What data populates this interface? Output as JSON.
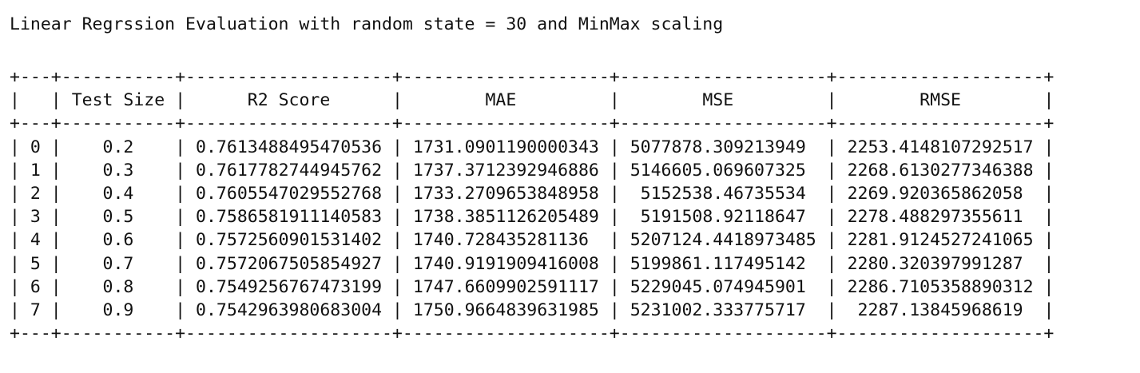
{
  "title": "Linear Regrssion Evaluation with random state = 30 and MinMax scaling",
  "table": {
    "columns": [
      "",
      "Test Size",
      "R2 Score",
      "MAE",
      "MSE",
      "RMSE"
    ],
    "rows": [
      [
        "0",
        "0.2",
        "0.7613488495470536",
        "1731.0901190000343",
        "5077878.309213949",
        "2253.4148107292517"
      ],
      [
        "1",
        "0.3",
        "0.7617782744945762",
        "1737.3712392946886",
        "5146605.069607325",
        "2268.6130277346388"
      ],
      [
        "2",
        "0.4",
        "0.7605547029552768",
        "1733.2709653848958",
        "5152538.46735534",
        "2269.920365862058"
      ],
      [
        "3",
        "0.5",
        "0.7586581911140583",
        "1738.3851126205489",
        "5191508.92118647",
        "2278.488297355611"
      ],
      [
        "4",
        "0.6",
        "0.7572560901531402",
        "1740.728435281136",
        "5207124.4418973485",
        "2281.9124527241065"
      ],
      [
        "5",
        "0.7",
        "0.7572067505854927",
        "1740.9191909416008",
        "5199861.117495142",
        "2280.320397991287"
      ],
      [
        "6",
        "0.8",
        "0.7549256767473199",
        "1747.6609902591117",
        "5229045.074945901",
        "2286.7105358890312"
      ],
      [
        "7",
        "0.9",
        "0.7542963980683004",
        "1750.9664839631985",
        "5231002.333775717",
        "2287.13845968619"
      ]
    ]
  }
}
